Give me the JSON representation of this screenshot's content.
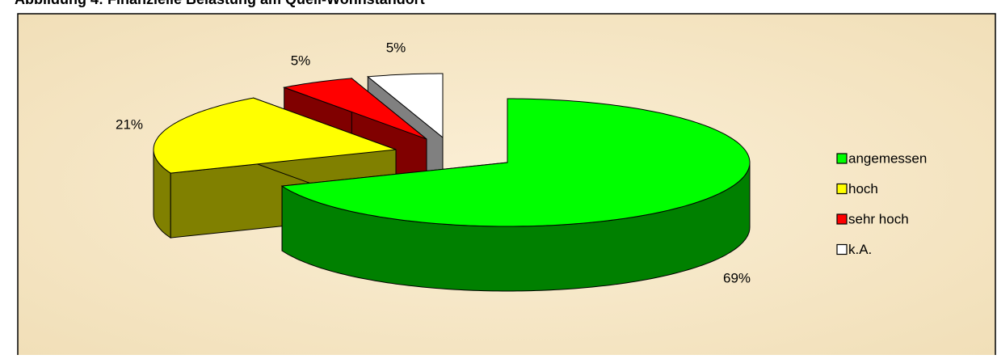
{
  "chart_data": {
    "type": "pie3d",
    "title": "Abbildung 4: Finanzielle Belastung am Quell-Wohnstandort",
    "categories": [
      "angemessen",
      "hoch",
      "sehr hoch",
      "k.A."
    ],
    "values": [
      69,
      21,
      5,
      5
    ],
    "value_labels": [
      "69%",
      "21%",
      "5%",
      "5%"
    ],
    "colors": [
      "#00ff00",
      "#ffff00",
      "#ff0000",
      "#ffffff"
    ],
    "legend": "right"
  }
}
